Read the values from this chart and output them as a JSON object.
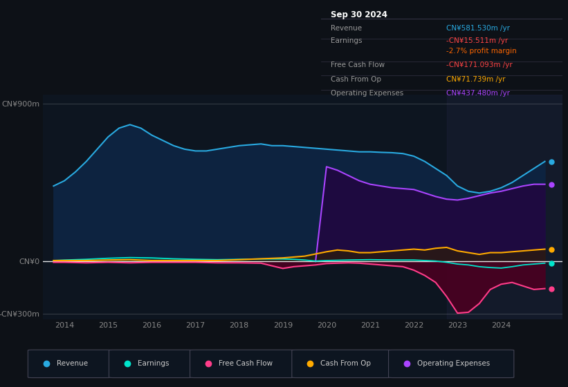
{
  "bg_color": "#0d1117",
  "plot_bg_color": "#0d1520",
  "title_box": {
    "date": "Sep 30 2024",
    "rows": [
      {
        "label": "Revenue",
        "value": "CN¥581.530m /yr",
        "value_color": "#29aae1"
      },
      {
        "label": "Earnings",
        "value": "-CN¥15.511m /yr",
        "value_color": "#ff4444"
      },
      {
        "label": "",
        "value": "-2.7% profit margin",
        "value_color": "#ff6600"
      },
      {
        "label": "Free Cash Flow",
        "value": "-CN¥171.093m /yr",
        "value_color": "#ff4444"
      },
      {
        "label": "Cash From Op",
        "value": "CN¥71.739m /yr",
        "value_color": "#ffaa00"
      },
      {
        "label": "Operating Expenses",
        "value": "CN¥437.480m /yr",
        "value_color": "#aa44ff"
      }
    ]
  },
  "ylim": [
    -330,
    950
  ],
  "yticks": [
    -300,
    0,
    900
  ],
  "ytick_labels": [
    "-CN¥300m",
    "CN¥0",
    "CN¥900m"
  ],
  "xlim_start": 2013.5,
  "xlim_end": 2025.4,
  "xticks": [
    2014,
    2015,
    2016,
    2017,
    2018,
    2019,
    2020,
    2021,
    2022,
    2023,
    2024
  ],
  "series": {
    "revenue": {
      "color": "#29aae1",
      "fill_color": "#0d2340",
      "label": "Revenue"
    },
    "earnings": {
      "color": "#00e5cc",
      "fill_color": "#0a3535",
      "label": "Earnings"
    },
    "free_cash_flow": {
      "color": "#ff3d8a",
      "fill_color": "#4a0020",
      "label": "Free Cash Flow"
    },
    "cash_from_op": {
      "color": "#ffaa00",
      "fill_color": "#302000",
      "label": "Cash From Op"
    },
    "operating_expenses": {
      "color": "#aa44ff",
      "fill_color": "#1e0a40",
      "label": "Operating Expenses"
    }
  },
  "revenue_x": [
    2013.75,
    2014.0,
    2014.25,
    2014.5,
    2014.75,
    2015.0,
    2015.25,
    2015.5,
    2015.75,
    2016.0,
    2016.25,
    2016.5,
    2016.75,
    2017.0,
    2017.25,
    2017.5,
    2017.75,
    2018.0,
    2018.25,
    2018.5,
    2018.75,
    2019.0,
    2019.25,
    2019.5,
    2019.75,
    2020.0,
    2020.25,
    2020.5,
    2020.75,
    2021.0,
    2021.25,
    2021.5,
    2021.75,
    2022.0,
    2022.25,
    2022.5,
    2022.75,
    2023.0,
    2023.25,
    2023.5,
    2023.75,
    2024.0,
    2024.25,
    2024.5,
    2024.75,
    2025.0
  ],
  "revenue_y": [
    430,
    460,
    510,
    570,
    640,
    710,
    760,
    780,
    760,
    720,
    690,
    660,
    640,
    630,
    630,
    640,
    650,
    660,
    665,
    670,
    660,
    660,
    655,
    650,
    645,
    640,
    635,
    630,
    625,
    625,
    622,
    620,
    615,
    600,
    570,
    530,
    490,
    430,
    400,
    390,
    400,
    420,
    450,
    490,
    530,
    570
  ],
  "earnings_x": [
    2013.75,
    2014.0,
    2014.5,
    2015.0,
    2015.5,
    2016.0,
    2016.5,
    2017.0,
    2017.5,
    2018.0,
    2018.5,
    2019.0,
    2019.25,
    2019.5,
    2019.75,
    2020.0,
    2020.5,
    2021.0,
    2021.5,
    2022.0,
    2022.25,
    2022.5,
    2022.75,
    2023.0,
    2023.25,
    2023.5,
    2023.75,
    2024.0,
    2024.25,
    2024.5,
    2024.75,
    2025.0
  ],
  "earnings_y": [
    5,
    8,
    12,
    18,
    22,
    20,
    15,
    12,
    10,
    12,
    14,
    14,
    12,
    8,
    2,
    5,
    8,
    10,
    8,
    8,
    5,
    2,
    -5,
    -15,
    -20,
    -30,
    -35,
    -38,
    -30,
    -20,
    -15,
    -10
  ],
  "fcf_x": [
    2013.75,
    2014.0,
    2014.5,
    2015.0,
    2015.5,
    2016.0,
    2016.5,
    2017.0,
    2017.5,
    2018.0,
    2018.5,
    2019.0,
    2019.25,
    2019.5,
    2019.75,
    2020.0,
    2020.25,
    2020.5,
    2020.75,
    2021.0,
    2021.25,
    2021.5,
    2021.75,
    2022.0,
    2022.25,
    2022.5,
    2022.75,
    2023.0,
    2023.25,
    2023.5,
    2023.75,
    2024.0,
    2024.25,
    2024.5,
    2024.75,
    2025.0
  ],
  "fcf_y": [
    -5,
    -5,
    -8,
    -5,
    -8,
    -5,
    -5,
    -5,
    -8,
    -8,
    -10,
    -40,
    -30,
    -25,
    -20,
    -12,
    -10,
    -8,
    -10,
    -15,
    -20,
    -25,
    -30,
    -50,
    -80,
    -120,
    -200,
    -295,
    -290,
    -240,
    -160,
    -130,
    -120,
    -140,
    -160,
    -155
  ],
  "cfop_x": [
    2013.75,
    2014.0,
    2014.5,
    2015.0,
    2015.5,
    2016.0,
    2016.5,
    2017.0,
    2017.5,
    2018.0,
    2018.5,
    2019.0,
    2019.5,
    2020.0,
    2020.25,
    2020.5,
    2020.75,
    2021.0,
    2021.25,
    2021.5,
    2021.75,
    2022.0,
    2022.25,
    2022.5,
    2022.75,
    2023.0,
    2023.25,
    2023.5,
    2023.75,
    2024.0,
    2024.25,
    2024.5,
    2024.75,
    2025.0
  ],
  "cfop_y": [
    5,
    5,
    5,
    8,
    10,
    5,
    5,
    5,
    5,
    10,
    15,
    20,
    30,
    55,
    65,
    60,
    50,
    50,
    55,
    60,
    65,
    70,
    65,
    75,
    80,
    60,
    50,
    40,
    50,
    50,
    55,
    60,
    65,
    70
  ],
  "opex_x": [
    2019.75,
    2020.0,
    2020.25,
    2020.5,
    2020.75,
    2021.0,
    2021.25,
    2021.5,
    2021.75,
    2022.0,
    2022.25,
    2022.5,
    2022.75,
    2023.0,
    2023.25,
    2023.5,
    2023.75,
    2024.0,
    2024.25,
    2024.5,
    2024.75,
    2025.0
  ],
  "opex_y": [
    0,
    540,
    520,
    490,
    460,
    440,
    430,
    420,
    415,
    410,
    390,
    370,
    355,
    350,
    360,
    375,
    390,
    400,
    415,
    430,
    440,
    440
  ]
}
